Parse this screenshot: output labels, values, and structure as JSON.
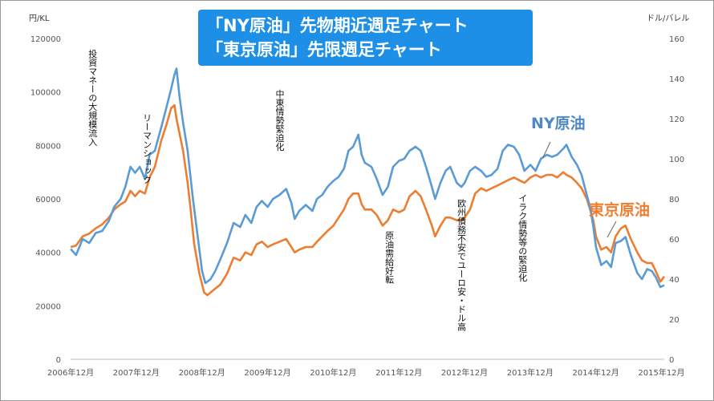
{
  "title": {
    "line1": "「NY原油」先物期近週足チャート",
    "line2": "「東京原油」先限週足チャート"
  },
  "chart_data": {
    "type": "line",
    "left_axis": {
      "unit": "円/KL",
      "ticks": [
        "0",
        "20000",
        "40000",
        "60000",
        "80000",
        "100000",
        "120000"
      ],
      "range": [
        0,
        120000
      ]
    },
    "right_axis": {
      "unit": "ドル/バレル",
      "ticks": [
        "0",
        "20",
        "40",
        "60",
        "80",
        "100",
        "120",
        "140",
        "160"
      ],
      "range": [
        0,
        160
      ]
    },
    "x_range": [
      2006.917,
      2015.96
    ],
    "x_ticks": [
      "2006年12月",
      "2007年12月",
      "2008年12月",
      "2009年12月",
      "2010年12月",
      "2011年12月",
      "2012年12月",
      "2013年12月",
      "2014年12月",
      "2015年12月"
    ],
    "gridlines": false,
    "series": [
      {
        "name": "NY原油",
        "axis": "right",
        "color": "#5b9bd5",
        "points": [
          [
            2006.92,
            55
          ],
          [
            2007.0,
            52
          ],
          [
            2007.1,
            60
          ],
          [
            2007.2,
            58
          ],
          [
            2007.3,
            63
          ],
          [
            2007.4,
            64
          ],
          [
            2007.5,
            69
          ],
          [
            2007.58,
            76
          ],
          [
            2007.68,
            80
          ],
          [
            2007.75,
            86
          ],
          [
            2007.83,
            96
          ],
          [
            2007.9,
            93
          ],
          [
            2007.97,
            96
          ],
          [
            2008.05,
            90
          ],
          [
            2008.12,
            102
          ],
          [
            2008.2,
            104
          ],
          [
            2008.3,
            116
          ],
          [
            2008.38,
            126
          ],
          [
            2008.45,
            135
          ],
          [
            2008.5,
            142
          ],
          [
            2008.53,
            145
          ],
          [
            2008.58,
            130
          ],
          [
            2008.63,
            118
          ],
          [
            2008.7,
            104
          ],
          [
            2008.78,
            80
          ],
          [
            2008.85,
            62
          ],
          [
            2008.92,
            44
          ],
          [
            2008.97,
            38
          ],
          [
            2009.05,
            40
          ],
          [
            2009.12,
            44
          ],
          [
            2009.2,
            50
          ],
          [
            2009.3,
            58
          ],
          [
            2009.4,
            68
          ],
          [
            2009.5,
            66
          ],
          [
            2009.58,
            72
          ],
          [
            2009.67,
            68
          ],
          [
            2009.75,
            76
          ],
          [
            2009.83,
            79
          ],
          [
            2009.92,
            76
          ],
          [
            2010.0,
            80
          ],
          [
            2010.1,
            82
          ],
          [
            2010.2,
            85
          ],
          [
            2010.28,
            78
          ],
          [
            2010.33,
            70
          ],
          [
            2010.4,
            74
          ],
          [
            2010.5,
            77
          ],
          [
            2010.6,
            74
          ],
          [
            2010.67,
            80
          ],
          [
            2010.75,
            82
          ],
          [
            2010.83,
            86
          ],
          [
            2010.92,
            89
          ],
          [
            2011.0,
            91
          ],
          [
            2011.08,
            95
          ],
          [
            2011.15,
            104
          ],
          [
            2011.22,
            106
          ],
          [
            2011.3,
            112
          ],
          [
            2011.35,
            102
          ],
          [
            2011.4,
            98
          ],
          [
            2011.5,
            96
          ],
          [
            2011.58,
            90
          ],
          [
            2011.67,
            82
          ],
          [
            2011.75,
            86
          ],
          [
            2011.83,
            96
          ],
          [
            2011.92,
            99
          ],
          [
            2012.0,
            100
          ],
          [
            2012.08,
            104
          ],
          [
            2012.17,
            106
          ],
          [
            2012.25,
            104
          ],
          [
            2012.33,
            96
          ],
          [
            2012.42,
            86
          ],
          [
            2012.47,
            80
          ],
          [
            2012.55,
            88
          ],
          [
            2012.63,
            94
          ],
          [
            2012.7,
            96
          ],
          [
            2012.8,
            88
          ],
          [
            2012.87,
            86
          ],
          [
            2012.92,
            88
          ],
          [
            2013.0,
            94
          ],
          [
            2013.08,
            96
          ],
          [
            2013.17,
            94
          ],
          [
            2013.25,
            91
          ],
          [
            2013.33,
            92
          ],
          [
            2013.42,
            95
          ],
          [
            2013.5,
            104
          ],
          [
            2013.58,
            107
          ],
          [
            2013.67,
            106
          ],
          [
            2013.75,
            102
          ],
          [
            2013.83,
            94
          ],
          [
            2013.92,
            97
          ],
          [
            2014.0,
            94
          ],
          [
            2014.08,
            100
          ],
          [
            2014.17,
            102
          ],
          [
            2014.25,
            101
          ],
          [
            2014.33,
            102
          ],
          [
            2014.42,
            105
          ],
          [
            2014.47,
            107
          ],
          [
            2014.55,
            101
          ],
          [
            2014.63,
            97
          ],
          [
            2014.7,
            92
          ],
          [
            2014.78,
            82
          ],
          [
            2014.83,
            76
          ],
          [
            2014.88,
            66
          ],
          [
            2014.92,
            56
          ],
          [
            2015.0,
            47
          ],
          [
            2015.08,
            49
          ],
          [
            2015.15,
            46
          ],
          [
            2015.22,
            58
          ],
          [
            2015.3,
            59
          ],
          [
            2015.37,
            61
          ],
          [
            2015.45,
            52
          ],
          [
            2015.55,
            43
          ],
          [
            2015.62,
            40
          ],
          [
            2015.7,
            45
          ],
          [
            2015.77,
            44
          ],
          [
            2015.83,
            41
          ],
          [
            2015.9,
            36
          ],
          [
            2015.96,
            37
          ]
        ]
      },
      {
        "name": "東京原油",
        "axis": "left",
        "color": "#ed7d31",
        "points": [
          [
            2006.92,
            42000
          ],
          [
            2007.0,
            42500
          ],
          [
            2007.1,
            46000
          ],
          [
            2007.2,
            47000
          ],
          [
            2007.3,
            49000
          ],
          [
            2007.4,
            50500
          ],
          [
            2007.5,
            53000
          ],
          [
            2007.58,
            56000
          ],
          [
            2007.68,
            58000
          ],
          [
            2007.75,
            59000
          ],
          [
            2007.83,
            63000
          ],
          [
            2007.9,
            61000
          ],
          [
            2007.97,
            63000
          ],
          [
            2008.05,
            62000
          ],
          [
            2008.12,
            68000
          ],
          [
            2008.2,
            72000
          ],
          [
            2008.3,
            82000
          ],
          [
            2008.38,
            88000
          ],
          [
            2008.45,
            94000
          ],
          [
            2008.5,
            95000
          ],
          [
            2008.53,
            90000
          ],
          [
            2008.58,
            84000
          ],
          [
            2008.63,
            78000
          ],
          [
            2008.7,
            66000
          ],
          [
            2008.75,
            55000
          ],
          [
            2008.8,
            43000
          ],
          [
            2008.88,
            32000
          ],
          [
            2008.95,
            25000
          ],
          [
            2009.0,
            24000
          ],
          [
            2009.1,
            26000
          ],
          [
            2009.2,
            28000
          ],
          [
            2009.3,
            32000
          ],
          [
            2009.4,
            38000
          ],
          [
            2009.5,
            37000
          ],
          [
            2009.58,
            40000
          ],
          [
            2009.67,
            39000
          ],
          [
            2009.75,
            43000
          ],
          [
            2009.83,
            44000
          ],
          [
            2009.92,
            42000
          ],
          [
            2010.0,
            43000
          ],
          [
            2010.1,
            44000
          ],
          [
            2010.2,
            45000
          ],
          [
            2010.28,
            42000
          ],
          [
            2010.33,
            40000
          ],
          [
            2010.4,
            41000
          ],
          [
            2010.5,
            42000
          ],
          [
            2010.6,
            42000
          ],
          [
            2010.67,
            44000
          ],
          [
            2010.75,
            46000
          ],
          [
            2010.83,
            48000
          ],
          [
            2010.92,
            50000
          ],
          [
            2011.0,
            53000
          ],
          [
            2011.08,
            56000
          ],
          [
            2011.15,
            60000
          ],
          [
            2011.22,
            62000
          ],
          [
            2011.3,
            62000
          ],
          [
            2011.35,
            58000
          ],
          [
            2011.4,
            56000
          ],
          [
            2011.5,
            56000
          ],
          [
            2011.58,
            54000
          ],
          [
            2011.67,
            50000
          ],
          [
            2011.75,
            52000
          ],
          [
            2011.83,
            56000
          ],
          [
            2011.92,
            55000
          ],
          [
            2012.0,
            56000
          ],
          [
            2012.08,
            61000
          ],
          [
            2012.17,
            63000
          ],
          [
            2012.25,
            61000
          ],
          [
            2012.33,
            56000
          ],
          [
            2012.42,
            50000
          ],
          [
            2012.47,
            46000
          ],
          [
            2012.55,
            50000
          ],
          [
            2012.63,
            53000
          ],
          [
            2012.7,
            53000
          ],
          [
            2012.8,
            52000
          ],
          [
            2012.87,
            52000
          ],
          [
            2012.92,
            53000
          ],
          [
            2013.0,
            56000
          ],
          [
            2013.08,
            62000
          ],
          [
            2013.17,
            64000
          ],
          [
            2013.25,
            63000
          ],
          [
            2013.33,
            64000
          ],
          [
            2013.42,
            65000
          ],
          [
            2013.5,
            66000
          ],
          [
            2013.58,
            67000
          ],
          [
            2013.67,
            68000
          ],
          [
            2013.75,
            67000
          ],
          [
            2013.83,
            66000
          ],
          [
            2013.92,
            68000
          ],
          [
            2014.0,
            69000
          ],
          [
            2014.08,
            68000
          ],
          [
            2014.17,
            69000
          ],
          [
            2014.25,
            69000
          ],
          [
            2014.33,
            68000
          ],
          [
            2014.42,
            70000
          ],
          [
            2014.47,
            69000
          ],
          [
            2014.55,
            68000
          ],
          [
            2014.63,
            66000
          ],
          [
            2014.7,
            64000
          ],
          [
            2014.78,
            60000
          ],
          [
            2014.83,
            56000
          ],
          [
            2014.88,
            52000
          ],
          [
            2014.92,
            46000
          ],
          [
            2015.0,
            41000
          ],
          [
            2015.08,
            42000
          ],
          [
            2015.15,
            40000
          ],
          [
            2015.22,
            46000
          ],
          [
            2015.3,
            49000
          ],
          [
            2015.37,
            50000
          ],
          [
            2015.45,
            45000
          ],
          [
            2015.55,
            40000
          ],
          [
            2015.62,
            37000
          ],
          [
            2015.7,
            36000
          ],
          [
            2015.77,
            36000
          ],
          [
            2015.83,
            33000
          ],
          [
            2015.9,
            29000
          ],
          [
            2015.96,
            31000
          ]
        ]
      }
    ],
    "series_labels": {
      "ny": "NY原油",
      "tokyo": "東京原油"
    },
    "annotations": [
      {
        "text": "投資マネーの大規模流入",
        "x": 2007.25,
        "anchor_value": 116000
      },
      {
        "text": "リーマンショック",
        "x": 2008.08,
        "anchor_value": 92000
      },
      {
        "text": "中東情勢緊迫化",
        "x": 2010.1,
        "anchor_value": 101000
      },
      {
        "text": "原油需給好転",
        "x": 2011.77,
        "anchor_value": 48000
      },
      {
        "text": "欧州債務不安でユーロ安・ドル高",
        "x": 2012.87,
        "anchor_value": 60000
      },
      {
        "text": "イラク情勢等の緊迫化",
        "x": 2013.8,
        "anchor_value": 62000
      }
    ]
  }
}
